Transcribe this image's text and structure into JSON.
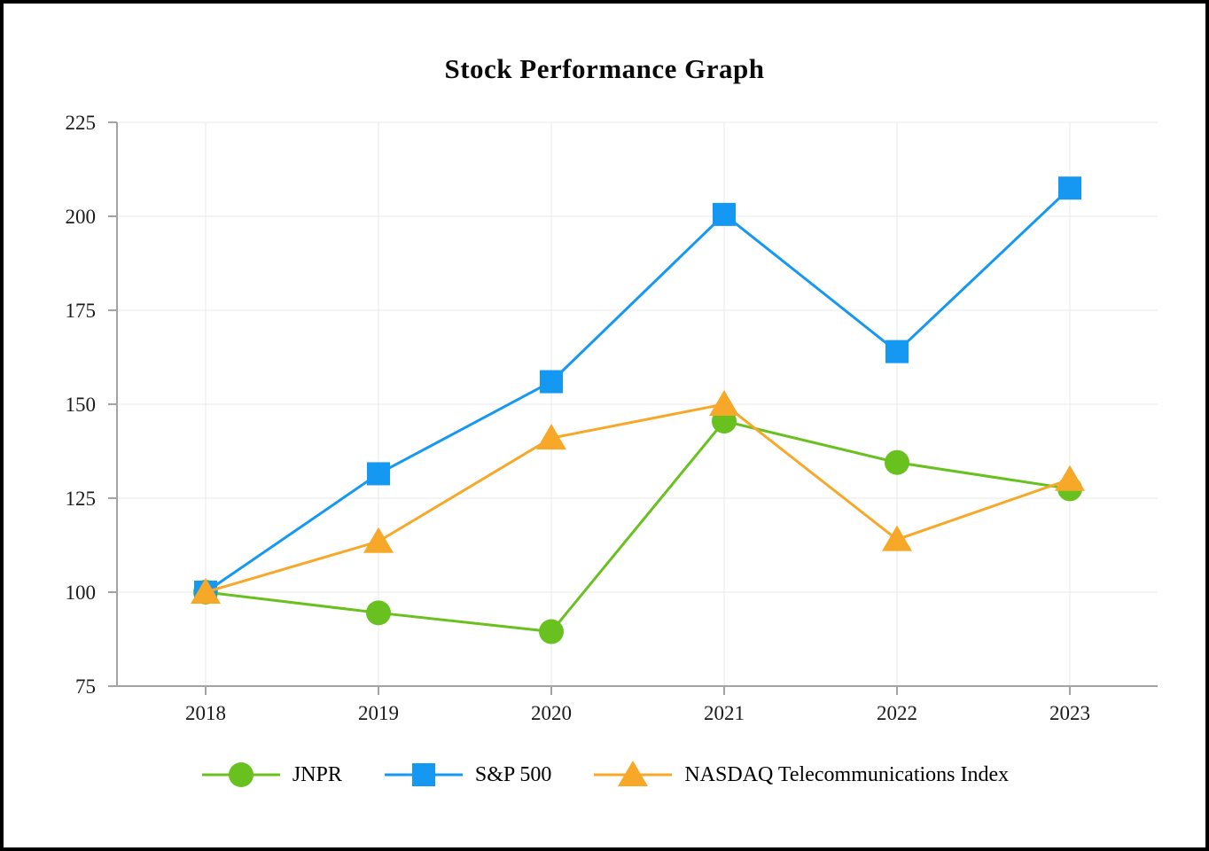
{
  "title": "Stock Performance Graph",
  "colors": {
    "jnpr": "#69C120",
    "sp500": "#1598F2",
    "nasdaq_telecom": "#F8A829",
    "grid": "#E8E8E8",
    "axis": "#A3A3A3",
    "text": "#1a1a1a",
    "background": "#FFFFFF",
    "page_border": "#000000"
  },
  "chart_data": {
    "type": "line",
    "title": "Stock Performance Graph",
    "categories": [
      "2018",
      "2019",
      "2020",
      "2021",
      "2022",
      "2023"
    ],
    "series": [
      {
        "name": "JNPR",
        "marker": "circle",
        "color": "#69C120",
        "values": [
          100,
          94.5,
          89.5,
          145.5,
          134.5,
          127.5
        ]
      },
      {
        "name": "S&P 500",
        "marker": "square",
        "color": "#1598F2",
        "values": [
          100,
          131.5,
          156,
          200.5,
          164,
          207.5
        ]
      },
      {
        "name": "NASDAQ Telecommunications Index",
        "marker": "triangle",
        "color": "#F8A829",
        "values": [
          100,
          113.5,
          141,
          150,
          114,
          130
        ]
      }
    ],
    "xlabel": "",
    "ylabel": "",
    "ylim": [
      75,
      225
    ],
    "yticks": [
      75,
      100,
      125,
      150,
      175,
      200,
      225
    ],
    "grid": true,
    "legend_position": "bottom"
  }
}
